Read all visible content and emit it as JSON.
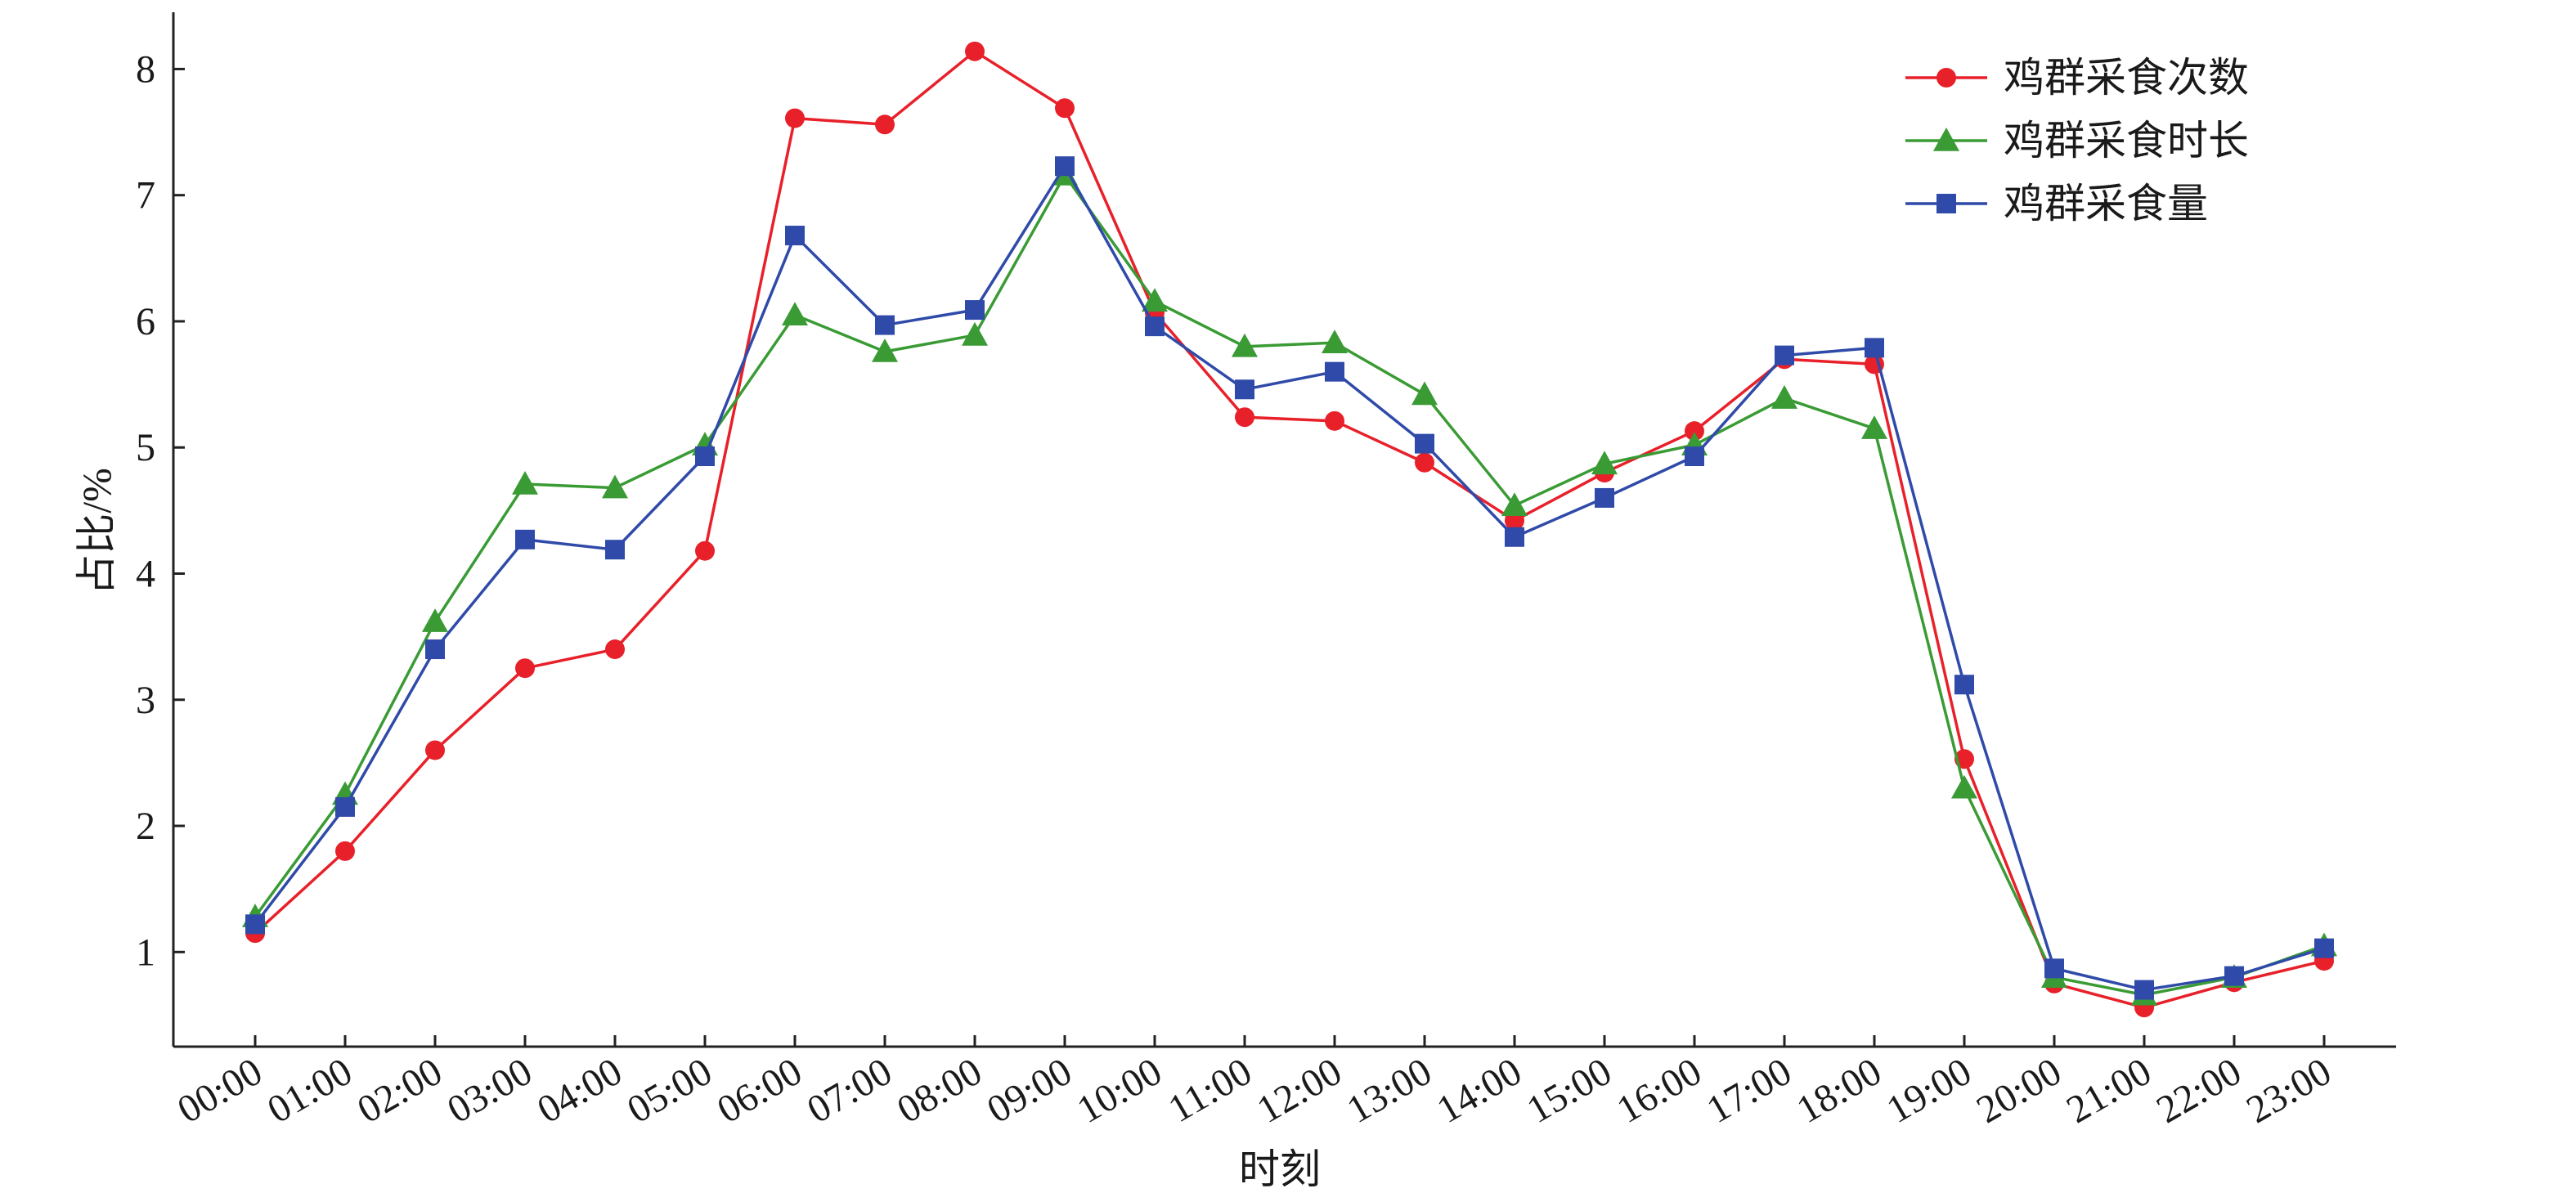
{
  "chart_data": {
    "type": "line",
    "title": "",
    "xlabel": "时刻",
    "ylabel": "占比/%",
    "ylim": [
      0.25,
      8.45
    ],
    "yticks": [
      1,
      2,
      3,
      4,
      5,
      6,
      7,
      8
    ],
    "grid": false,
    "legend_position": "top-right",
    "categories": [
      "00:00",
      "01:00",
      "02:00",
      "03:00",
      "04:00",
      "05:00",
      "06:00",
      "07:00",
      "08:00",
      "09:00",
      "10:00",
      "11:00",
      "12:00",
      "13:00",
      "14:00",
      "15:00",
      "16:00",
      "17:00",
      "18:00",
      "19:00",
      "20:00",
      "21:00",
      "22:00",
      "23:00"
    ],
    "series": [
      {
        "name": "鸡群采食次数",
        "color": "#e8202a",
        "marker": "circle",
        "values": [
          1.15,
          1.8,
          2.6,
          3.25,
          3.4,
          4.18,
          7.61,
          7.56,
          8.14,
          7.69,
          6.07,
          5.24,
          5.21,
          4.88,
          4.42,
          4.8,
          5.13,
          5.7,
          5.66,
          2.53,
          0.75,
          0.56,
          0.76,
          0.93
        ]
      },
      {
        "name": "鸡群采食时长",
        "color": "#3a9b35",
        "marker": "triangle",
        "values": [
          1.28,
          2.25,
          3.62,
          4.71,
          4.68,
          5.02,
          6.05,
          5.76,
          5.89,
          7.16,
          6.16,
          5.8,
          5.83,
          5.42,
          4.54,
          4.87,
          5.02,
          5.39,
          5.15,
          2.3,
          0.8,
          0.66,
          0.8,
          1.05
        ]
      },
      {
        "name": "鸡群采食量",
        "color": "#2f4aa8",
        "marker": "square",
        "values": [
          1.22,
          2.15,
          3.4,
          4.27,
          4.19,
          4.93,
          6.68,
          5.97,
          6.09,
          7.23,
          5.96,
          5.46,
          5.6,
          5.03,
          4.29,
          4.6,
          4.93,
          5.73,
          5.79,
          3.12,
          0.87,
          0.7,
          0.81,
          1.03
        ]
      }
    ]
  }
}
